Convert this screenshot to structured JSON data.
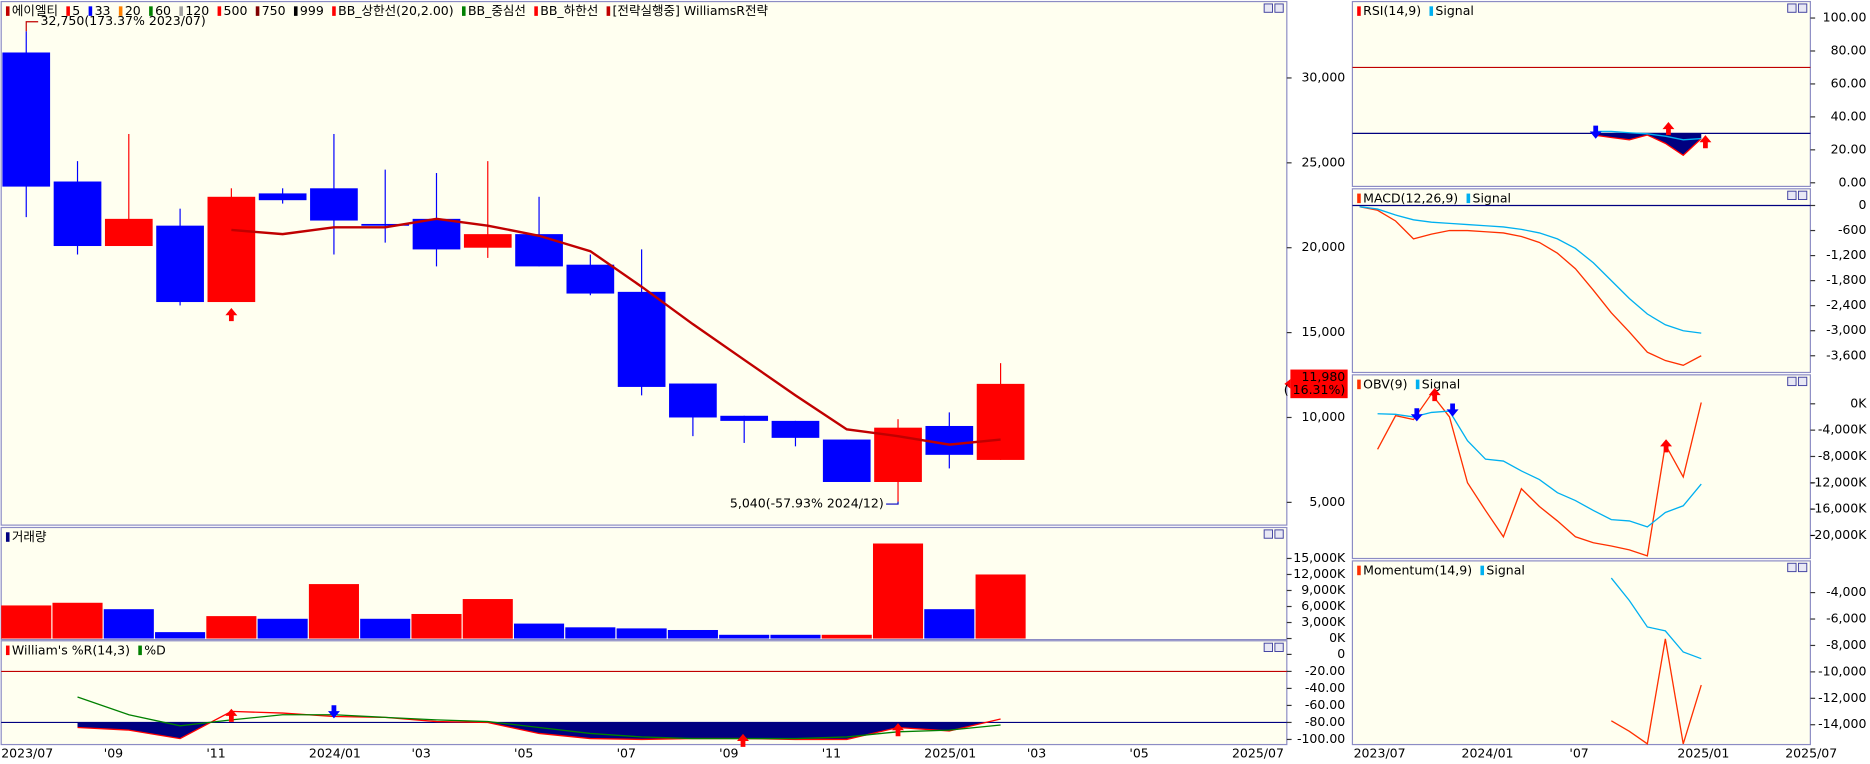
{
  "chart_data": [
    {
      "type": "candlestick",
      "legend": [
        {
          "name": "에이엘티",
          "color": "#c00000"
        },
        {
          "name": "5",
          "color": "#ff0000"
        },
        {
          "name": "33",
          "color": "#0000ff"
        },
        {
          "name": "20",
          "color": "#ff8000"
        },
        {
          "name": "60",
          "color": "#008000"
        },
        {
          "name": "120",
          "color": "#a0a0a0"
        },
        {
          "name": "500",
          "color": "#ff0000"
        },
        {
          "name": "750",
          "color": "#800000"
        },
        {
          "name": "999",
          "color": "#000000"
        },
        {
          "name": "BB_상한선(20,2.00)",
          "color": "#ff0000"
        },
        {
          "name": "BB_중심선",
          "color": "#008000"
        },
        {
          "name": "BB_하한선",
          "color": "#ff0000"
        },
        {
          "name": "[전략실행중] WilliamsR전략",
          "color": "#c00000"
        }
      ],
      "ohlc": {
        "open": [
          31500,
          23900,
          20100,
          21300,
          16800,
          23200,
          23500,
          21400,
          21700,
          20000,
          20800,
          19000,
          17400,
          12000,
          10100,
          9800,
          8700,
          6200,
          9500,
          7500,
          null,
          null,
          null,
          null,
          null
        ],
        "high": [
          32750,
          25100,
          26700,
          22300,
          23500,
          23500,
          26700,
          24600,
          24400,
          25100,
          23000,
          19600,
          19900,
          12000,
          10100,
          9800,
          8700,
          9900,
          10300,
          13200,
          null,
          null,
          null,
          null,
          null
        ],
        "low": [
          21800,
          19600,
          20100,
          16600,
          16800,
          22600,
          19600,
          20300,
          18900,
          19400,
          18900,
          17200,
          11300,
          8900,
          8500,
          8300,
          6200,
          5040,
          7000,
          7500,
          null,
          null,
          null,
          null,
          null
        ],
        "close": [
          23600,
          20100,
          21700,
          16800,
          23000,
          22800,
          21600,
          21300,
          19900,
          20800,
          18900,
          17300,
          11800,
          10000,
          9800,
          8800,
          6200,
          9400,
          7800,
          11980,
          null,
          null,
          null,
          null,
          null
        ]
      },
      "up_color": "#ff0000",
      "down_color": "#0000ff",
      "overlay": {
        "color": "#c00000",
        "values": [
          null,
          null,
          null,
          null,
          21050,
          20800,
          21200,
          21200,
          21700,
          21300,
          20700,
          19800,
          17700,
          15500,
          13400,
          11300,
          9300,
          8900,
          8400,
          8700,
          null,
          null,
          null,
          null,
          null
        ]
      },
      "annotations": [
        {
          "value": 32750,
          "text": "32,750(173.37% 2023/07)",
          "color": "#c00000"
        },
        {
          "value": 5040,
          "text": "5,040(-57.93% 2024/12)",
          "color": "#0000c0"
        }
      ],
      "price_tag": {
        "value": 11980,
        "label": "11,980",
        "change": "( 16.31%)"
      },
      "ylim": [
        3660,
        34500
      ],
      "yticks": [
        {
          "value": 5000,
          "label": "5,000"
        },
        {
          "value": 10000,
          "label": "10,000"
        },
        {
          "value": 15000,
          "label": "15,000"
        },
        {
          "value": 20000,
          "label": "20,000"
        },
        {
          "value": 25000,
          "label": "25,000"
        },
        {
          "value": 30000,
          "label": "30,000"
        }
      ]
    },
    {
      "type": "bar",
      "legend": [
        {
          "name": "거래량",
          "color": "#000080"
        }
      ],
      "values": [
        6200,
        6700,
        5500,
        1200,
        4200,
        3700,
        10200,
        3700,
        4600,
        7400,
        2800,
        2100,
        1900,
        1600,
        700,
        700,
        700,
        17800,
        5500,
        12000,
        null,
        null,
        null,
        null,
        null
      ],
      "colors": [
        "#ff0000",
        "#ff0000",
        "#0000ff",
        "#0000ff",
        "#ff0000",
        "#0000ff",
        "#ff0000",
        "#0000ff",
        "#ff0000",
        "#ff0000",
        "#0000ff",
        "#0000ff",
        "#0000ff",
        "#0000ff",
        "#0000ff",
        "#0000ff",
        "#ff0000",
        "#ff0000",
        "#0000ff",
        "#ff0000",
        null,
        null,
        null,
        null,
        null
      ],
      "ylim": [
        -200,
        20800
      ],
      "yticks": [
        {
          "value": 0,
          "label": "0K"
        },
        {
          "value": 3000,
          "label": "3,000K"
        },
        {
          "value": 6000,
          "label": "6,000K"
        },
        {
          "value": 9000,
          "label": "9,000K"
        },
        {
          "value": 12000,
          "label": "12,000K"
        },
        {
          "value": 15000,
          "label": "15,000K"
        }
      ]
    },
    {
      "type": "line",
      "categories": [
        "2023/07",
        null,
        "'09",
        null,
        "'11",
        null,
        "2024/01",
        null,
        "'03",
        null,
        "'05",
        null,
        "'07",
        null,
        "'09",
        null,
        "'11",
        null,
        "2025/01",
        null,
        "'03",
        null,
        "'05",
        null,
        "2025/07"
      ],
      "series": [
        {
          "name": "William's %R(14,3)",
          "color": "#ff0000",
          "values": [
            null,
            -86,
            -89,
            -99,
            -67,
            -69,
            -73,
            -74,
            -79,
            -80,
            -93,
            -99,
            -100,
            -99,
            -99,
            -100,
            -100,
            -86,
            -90,
            -76,
            null,
            null,
            null,
            null,
            null
          ]
        },
        {
          "name": "%D",
          "color": "#008000",
          "values": [
            null,
            -50,
            -71,
            -84,
            -77,
            -71,
            -71,
            -74,
            -77,
            -79,
            -86,
            -93,
            -97,
            -99,
            -99,
            -99,
            -97,
            -91,
            -89,
            -83,
            null,
            null,
            null,
            null,
            null
          ]
        }
      ],
      "ref_lines": [
        {
          "value": -20,
          "color": "#c00000"
        },
        {
          "value": -80,
          "color": "#000080",
          "fill_below": true
        }
      ],
      "ylim": [
        -106,
        16
      ],
      "yticks": [
        0,
        {
          "value": -20,
          "label": "-20.00"
        },
        {
          "value": -40,
          "label": "-40.00"
        },
        {
          "value": -60,
          "label": "-60.00"
        },
        {
          "value": -80,
          "label": "-80.00"
        },
        {
          "value": -100,
          "label": "-100.00"
        }
      ]
    },
    {
      "type": "line",
      "series": [
        {
          "name": "RSI(14,9)",
          "color": "#ff0000",
          "values": [
            null,
            null,
            null,
            null,
            null,
            null,
            null,
            null,
            null,
            null,
            null,
            null,
            null,
            29.0,
            27.5,
            26.1,
            29.0,
            23.9,
            16.7,
            26.8,
            null,
            null,
            null,
            null,
            null
          ]
        },
        {
          "name": "Signal",
          "color": "#00b0f0",
          "values": [
            null,
            null,
            null,
            null,
            null,
            null,
            null,
            null,
            null,
            null,
            null,
            null,
            null,
            31.2,
            31.2,
            30.4,
            29.7,
            28.3,
            26.1,
            26.8,
            null,
            null,
            null,
            null,
            null
          ]
        }
      ],
      "ref_lines": [
        {
          "value": 70,
          "color": "#c00000"
        },
        {
          "value": 30,
          "color": "#000080",
          "fill_below": true
        }
      ],
      "ylim": [
        -2.2,
        110
      ],
      "yticks": [
        {
          "value": 0,
          "label": "0.00"
        },
        {
          "value": 20,
          "label": "20.00"
        },
        {
          "value": 40,
          "label": "40.00"
        },
        {
          "value": 60,
          "label": "60.00"
        },
        {
          "value": 80,
          "label": "80.00"
        },
        {
          "value": 100,
          "label": "100.00"
        }
      ]
    },
    {
      "type": "line",
      "series": [
        {
          "name": "MACD(12,26,9)",
          "color": "#ff3000",
          "values": [
            -29,
            -114,
            -371,
            -800,
            -686,
            -600,
            -600,
            -629,
            -657,
            -743,
            -886,
            -1143,
            -1514,
            -2029,
            -2571,
            -3029,
            -3514,
            -3714,
            -3829,
            -3600,
            null,
            null,
            null,
            null,
            null
          ]
        },
        {
          "name": "Signal",
          "color": "#00b0f0",
          "values": [
            -29,
            -86,
            -229,
            -343,
            -400,
            -429,
            -457,
            -486,
            -514,
            -571,
            -657,
            -800,
            -1029,
            -1371,
            -1800,
            -2229,
            -2600,
            -2857,
            -3000,
            -3057,
            null,
            null,
            null,
            null,
            null
          ]
        }
      ],
      "ref_lines": [
        {
          "value": 0,
          "color": "#000080"
        }
      ],
      "ylim": [
        -4000,
        400
      ],
      "yticks": [
        0,
        -600,
        {
          "value": -1200,
          "label": "-1,200"
        },
        {
          "value": -1800,
          "label": "-1,800"
        },
        {
          "value": -2400,
          "label": "-2,400"
        },
        {
          "value": -3000,
          "label": "-3,000"
        },
        {
          "value": -3600,
          "label": "-3,600"
        }
      ]
    },
    {
      "type": "line",
      "series": [
        {
          "name": "OBV(9)",
          "color": "#ff3000",
          "values": [
            null,
            -6900,
            -1800,
            -2400,
            1500,
            -2000,
            -12000,
            -16200,
            -20200,
            -12900,
            -15600,
            -17800,
            -20200,
            -21100,
            -21600,
            -22200,
            -23100,
            -6200,
            -11100,
            200,
            null,
            null,
            null,
            null,
            null
          ]
        },
        {
          "name": "Signal",
          "color": "#00b0f0",
          "values": [
            null,
            -1500,
            -1600,
            -2000,
            -1300,
            -1100,
            -5600,
            -8400,
            -8700,
            -10200,
            -11500,
            -13500,
            -14700,
            -16200,
            -17600,
            -17800,
            -18700,
            -16500,
            -15500,
            -12200,
            null,
            null,
            null,
            null,
            null
          ]
        }
      ],
      "ylim": [
        -23500,
        4400
      ],
      "yticks": [
        {
          "value": 0,
          "label": "0K"
        },
        {
          "value": -4000,
          "label": "-4,000K"
        },
        {
          "value": -8000,
          "label": "-8,000K"
        },
        {
          "value": -12000,
          "label": "-12,000K"
        },
        {
          "value": -16000,
          "label": "-16,000K"
        },
        {
          "value": -20000,
          "label": "-20,000K"
        }
      ]
    },
    {
      "type": "line",
      "categories": [
        "2023/07",
        null,
        null,
        null,
        null,
        null,
        "2024/01",
        null,
        null,
        null,
        null,
        null,
        "'07",
        null,
        null,
        null,
        null,
        null,
        "2025/01",
        null,
        null,
        null,
        null,
        null,
        "2025/07"
      ],
      "series": [
        {
          "name": "Momentum(14,9)",
          "color": "#ff3000",
          "values": [
            null,
            null,
            null,
            null,
            null,
            null,
            null,
            null,
            null,
            null,
            null,
            null,
            null,
            null,
            -13700,
            -14500,
            -15450,
            -7500,
            -15450,
            -11000,
            null,
            null,
            null,
            null,
            null
          ]
        },
        {
          "name": "Signal",
          "color": "#00b0f0",
          "values": [
            null,
            null,
            null,
            null,
            null,
            null,
            null,
            null,
            null,
            null,
            null,
            null,
            null,
            null,
            -2900,
            -4600,
            -6600,
            -6900,
            -8500,
            -9000,
            null,
            null,
            null,
            null,
            null
          ]
        }
      ],
      "ylim": [
        -15500,
        -1600
      ],
      "yticks": [
        {
          "value": -4000,
          "label": "-4,000"
        },
        {
          "value": -6000,
          "label": "-6,000"
        },
        {
          "value": -8000,
          "label": "-8,000"
        },
        {
          "value": -10000,
          "label": "-10,000"
        },
        {
          "value": -12000,
          "label": "-12,000"
        },
        {
          "value": -14000,
          "label": "-14,000"
        }
      ]
    }
  ]
}
